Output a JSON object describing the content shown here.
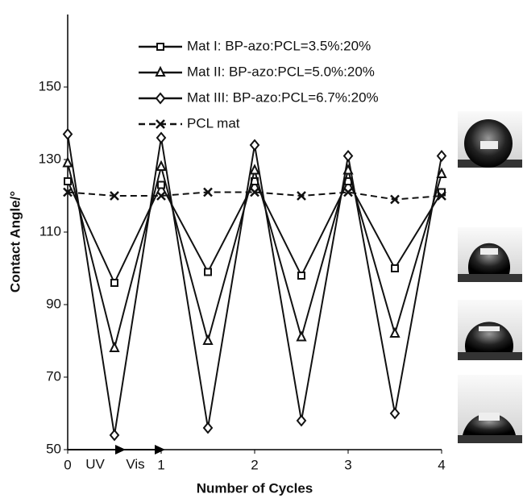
{
  "chart_data": {
    "type": "line",
    "x_label": "Number of Cycles",
    "y_label": "Contact Angle/°",
    "x": [
      0,
      0.5,
      1,
      1.5,
      2,
      2.5,
      3,
      3.5,
      4
    ],
    "xlim": [
      0,
      4
    ],
    "xticks": [
      0,
      1,
      2,
      3,
      4
    ],
    "ylim": [
      50,
      170
    ],
    "yticks": [
      50,
      70,
      90,
      110,
      130,
      150
    ],
    "annotations": [
      "UV",
      "Vis"
    ],
    "series": [
      {
        "name": "Mat I: BP-azo:PCL=3.5%:20%",
        "color": "#111111",
        "marker": "square",
        "dashed": false,
        "values": [
          124,
          96,
          123,
          99,
          124,
          98,
          124,
          100,
          121
        ]
      },
      {
        "name": "Mat II: BP-azo:PCL=5.0%:20%",
        "color": "#111111",
        "marker": "triangle",
        "dashed": false,
        "values": [
          129,
          78,
          128,
          80,
          127,
          81,
          127,
          82,
          126
        ]
      },
      {
        "name": "Mat III: BP-azo:PCL=6.7%:20%",
        "color": "#111111",
        "marker": "diamond",
        "dashed": false,
        "values": [
          137,
          54,
          136,
          56,
          134,
          58,
          131,
          60,
          131
        ]
      },
      {
        "name": "PCL mat",
        "color": "#111111",
        "marker": "cross",
        "dashed": true,
        "values": [
          121,
          120,
          120,
          121,
          121,
          120,
          121,
          119,
          120
        ]
      }
    ]
  }
}
